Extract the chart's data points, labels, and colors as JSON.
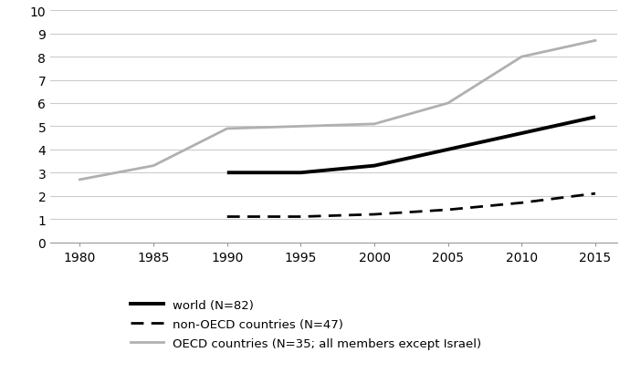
{
  "years": [
    1980,
    1985,
    1990,
    1995,
    2000,
    2005,
    2010,
    2015
  ],
  "world": [
    null,
    null,
    3.0,
    3.0,
    3.3,
    4.0,
    4.7,
    5.4
  ],
  "non_oecd": [
    null,
    null,
    1.1,
    1.1,
    1.2,
    1.4,
    1.7,
    2.1
  ],
  "oecd": [
    2.7,
    3.3,
    4.9,
    5.0,
    5.1,
    6.0,
    8.0,
    8.7
  ],
  "world_label": "world (N=82)",
  "non_oecd_label": "non-OECD countries (N=47)",
  "oecd_label": "OECD countries (N=35; all members except Israel)",
  "ylim": [
    0,
    10
  ],
  "yticks": [
    0,
    1,
    2,
    3,
    4,
    5,
    6,
    7,
    8,
    9,
    10
  ],
  "xticks": [
    1980,
    1985,
    1990,
    1995,
    2000,
    2005,
    2010,
    2015
  ],
  "world_color": "#000000",
  "non_oecd_color": "#000000",
  "oecd_color": "#b0b0b0",
  "background_color": "#ffffff",
  "grid_color": "#cccccc"
}
